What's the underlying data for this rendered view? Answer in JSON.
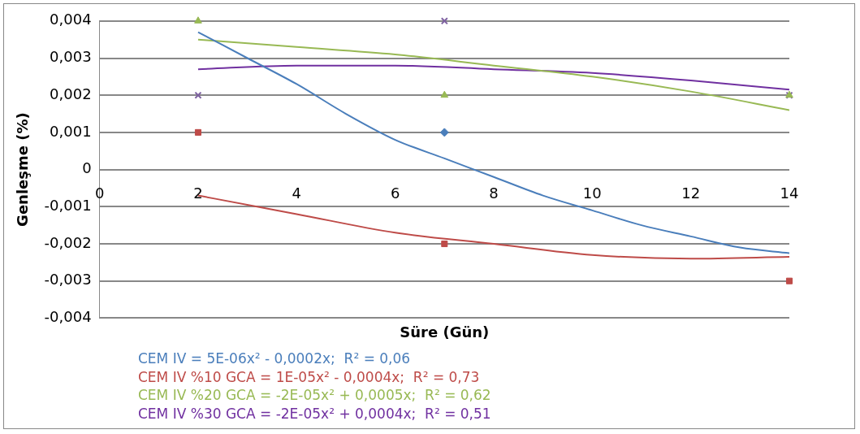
{
  "chart_data": {
    "type": "scatter",
    "xlabel": "Süre (Gün)",
    "ylabel": "Genleşme (%)",
    "x": [
      2,
      7,
      14
    ],
    "series": [
      {
        "marker": "diamond",
        "color": "#4a7ebb",
        "values": [
          null,
          0.001,
          null
        ]
      },
      {
        "marker": "square",
        "color": "#be4b48",
        "values": [
          0.001,
          -0.002,
          -0.003
        ]
      },
      {
        "marker": "triangle",
        "color": "#98b954",
        "values": [
          0.004,
          0.002,
          0.002
        ]
      },
      {
        "marker": "cross",
        "color": "#7d60a0",
        "values": [
          0.002,
          0.004,
          0.002
        ]
      },
      {
        "type": "line",
        "name": "CEM IV = 5E-06x² - 0,0002x;  R² = 0,06",
        "color": "#4a7ebb",
        "x": [
          2,
          3,
          4,
          5,
          6,
          7,
          8,
          9,
          10,
          11,
          12,
          13,
          14
        ],
        "values": [
          0.0037,
          0.003,
          0.0023,
          0.0015,
          0.0008,
          0.0003,
          -0.0002,
          -0.0007,
          -0.0011,
          -0.0015,
          -0.0018,
          -0.0021,
          -0.00225
        ]
      },
      {
        "type": "line",
        "name": "CEM IV %10 GCA = 1E-05x² - 0,0004x;  R² = 0,73",
        "color": "#be4b48",
        "x": [
          2,
          4,
          6,
          8,
          10,
          12,
          14
        ],
        "values": [
          -0.0007,
          -0.0012,
          -0.0017,
          -0.002,
          -0.0023,
          -0.0024,
          -0.00235
        ]
      },
      {
        "type": "line",
        "name": "CEM IV %20 GCA = -2E-05x² + 0,0005x;  R² = 0,62",
        "color": "#98b954",
        "x": [
          2,
          4,
          6,
          8,
          10,
          12,
          14
        ],
        "values": [
          0.0035,
          0.0033,
          0.0031,
          0.0028,
          0.0025,
          0.0021,
          0.0016
        ]
      },
      {
        "type": "line",
        "name": "CEM IV %30 GCA = -2E-05x² + 0,0004x;  R² = 0,51",
        "color": "#7030a0",
        "x": [
          2,
          4,
          6,
          8,
          10,
          12,
          14
        ],
        "values": [
          0.0027,
          0.0028,
          0.0028,
          0.0027,
          0.0026,
          0.0024,
          0.00215
        ]
      }
    ],
    "xlim": [
      0,
      14
    ],
    "xticks": [
      0,
      2,
      4,
      6,
      8,
      10,
      12,
      14
    ],
    "ylim": [
      -0.004,
      0.004
    ],
    "yticks": [
      {
        "value": -0.004,
        "label": "-0,004"
      },
      {
        "value": -0.003,
        "label": "-0,003"
      },
      {
        "value": -0.002,
        "label": "-0,002"
      },
      {
        "value": -0.001,
        "label": "-0,001"
      },
      {
        "value": 0,
        "label": "0"
      },
      {
        "value": 0.001,
        "label": "0,001"
      },
      {
        "value": 0.002,
        "label": "0,002"
      },
      {
        "value": 0.003,
        "label": "0,003"
      },
      {
        "value": 0.004,
        "label": "0,004"
      }
    ],
    "grid": "y",
    "legend": "bottom",
    "line_style": "solid"
  }
}
